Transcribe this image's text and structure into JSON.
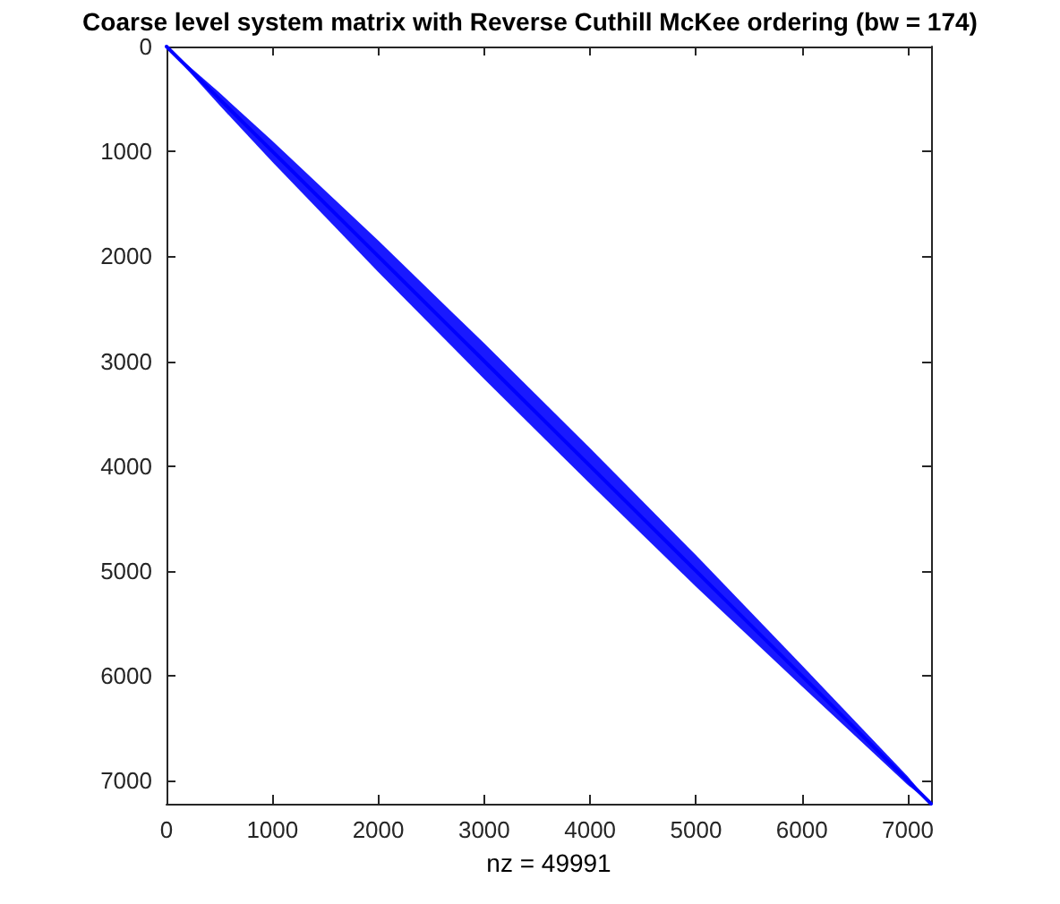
{
  "chart_data": {
    "type": "line",
    "title": "Coarse level system matrix with Reverse Cuthill McKee ordering (bw = 174)",
    "xlabel": "nz = 49991",
    "x": [
      0,
      500,
      1000,
      2000,
      3000,
      4000,
      5000,
      6000,
      7000,
      7220
    ],
    "series": [
      {
        "color": "#0000ff",
        "values": [
          0,
          500,
          1000,
          2000,
          3000,
          4000,
          5000,
          6000,
          7000,
          7220
        ],
        "lower": [
          0,
          440,
          900,
          1850,
          2830,
          3830,
          4850,
          5900,
          6960,
          7220
        ],
        "upper": [
          0,
          560,
          1100,
          2150,
          3170,
          4170,
          5150,
          6100,
          7040,
          7220
        ]
      }
    ],
    "xlim": [
      0,
      7220
    ],
    "ylim": [
      7220,
      0
    ],
    "xticks": [
      0,
      1000,
      2000,
      3000,
      4000,
      5000,
      6000,
      7000
    ],
    "yticks": [
      0,
      1000,
      2000,
      3000,
      4000,
      5000,
      6000,
      7000
    ],
    "grid": false,
    "marker": "none",
    "line_style": "solid"
  }
}
